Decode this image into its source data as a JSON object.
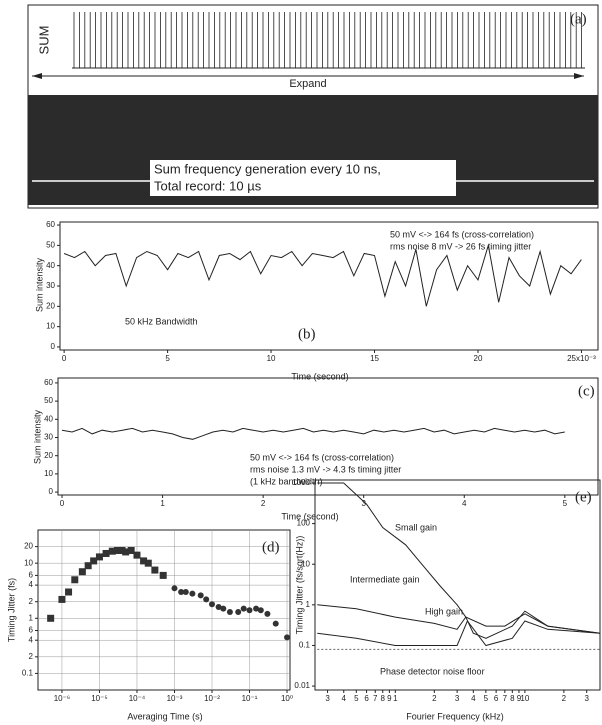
{
  "chart_data": [
    {
      "type": "trace",
      "label": "(a)",
      "channel": "SUM",
      "annotation": "Expand",
      "caption": [
        "Sum frequency generation every 10 ns,",
        "Total record: 10 µs"
      ]
    },
    {
      "type": "line",
      "label": "(b)",
      "ylabel": "Sum intensity",
      "xlabel": "Time (second)",
      "annotations": [
        "50 mV <-> 164 fs (cross-correlation)",
        "rms noise 8 mV -> 26 fs timing jitter",
        "50 kHz Bandwidth"
      ],
      "color": "#222",
      "x": [
        0,
        0.5,
        1,
        1.5,
        2,
        2.5,
        3,
        3.5,
        4,
        4.5,
        5,
        5.5,
        6,
        6.5,
        7,
        7.5,
        8,
        8.5,
        9,
        9.5,
        10,
        10.5,
        11,
        11.5,
        12,
        12.5,
        13,
        13.5,
        14,
        14.5,
        15,
        15.5,
        16,
        16.5,
        17,
        17.5,
        18,
        18.5,
        19,
        19.5,
        20,
        20.5,
        21,
        21.5,
        22,
        22.5,
        23,
        23.5,
        24,
        24.5,
        25
      ],
      "values": [
        46,
        44,
        47,
        40,
        45,
        46,
        30,
        44,
        47,
        45,
        38,
        46,
        44,
        47,
        33,
        45,
        46,
        43,
        47,
        36,
        45,
        44,
        47,
        40,
        46,
        45,
        44,
        47,
        35,
        46,
        45,
        25,
        42,
        30,
        48,
        20,
        38,
        45,
        28,
        40,
        33,
        50,
        22,
        44,
        35,
        30,
        47,
        26,
        40,
        36,
        43
      ],
      "xlim": [
        -0.2,
        25.8
      ],
      "xticks": [
        0,
        5,
        10,
        15,
        20,
        {
          "value": 25,
          "label": "25x10⁻³"
        }
      ],
      "ylim": [
        -1.5,
        61.5
      ],
      "yticks": [
        0,
        10,
        20,
        30,
        40,
        50,
        60
      ]
    },
    {
      "type": "line",
      "label": "(c)",
      "ylabel": "Sum intensity",
      "xlabel": "Time (second)",
      "annotations": [
        "50 mV <-> 164 fs (cross-correlation)",
        "rms noise 1.3 mV -> 4.3 fs timing jitter",
        "(1 kHz bandwidth)"
      ],
      "color": "#222",
      "x": [
        0,
        0.1,
        0.2,
        0.3,
        0.4,
        0.5,
        0.6,
        0.7,
        0.8,
        0.9,
        1,
        1.1,
        1.2,
        1.3,
        1.4,
        1.5,
        1.6,
        1.7,
        1.8,
        1.9,
        2,
        2.1,
        2.2,
        2.3,
        2.4,
        2.5,
        2.6,
        2.7,
        2.8,
        2.9,
        3,
        3.1,
        3.2,
        3.3,
        3.4,
        3.5,
        3.6,
        3.7,
        3.8,
        3.9,
        4,
        4.1,
        4.2,
        4.3,
        4.4,
        4.5,
        4.6,
        4.7,
        4.8,
        4.9,
        5
      ],
      "values": [
        34,
        33,
        35,
        32,
        34,
        33,
        34,
        35,
        33,
        34,
        33,
        32,
        30,
        29,
        31,
        33,
        34,
        33,
        35,
        34,
        33,
        34,
        33,
        34,
        35,
        33,
        34,
        33,
        34,
        33,
        32,
        34,
        33,
        34,
        33,
        34,
        35,
        33,
        34,
        32,
        33,
        34,
        33,
        35,
        34,
        33,
        34,
        33,
        34,
        32,
        33
      ],
      "xlim": [
        -0.04,
        5.33
      ],
      "xticks": [
        0,
        1,
        2,
        3,
        4,
        5
      ],
      "ylim": [
        -1.6,
        62.7
      ],
      "yticks": [
        0,
        10,
        20,
        30,
        40,
        50,
        60
      ]
    },
    {
      "type": "scatter",
      "label": "(d)",
      "ylabel": "Timing Jitter (fs)",
      "xlabel": "Averaging Time (s)",
      "xlog": true,
      "ylog": true,
      "grid": true,
      "series": [
        {
          "marker": "square",
          "color": "#333",
          "x": [
            5e-07,
            1e-06,
            1.5e-06,
            2.2e-06,
            3.5e-06,
            5e-06,
            7e-06,
            1e-05,
            1.5e-05,
            2.2e-05,
            3e-05,
            4e-05,
            5e-05,
            7e-05,
            0.0001,
            0.00015,
            0.0002,
            0.0003,
            0.0005
          ],
          "values": [
            1,
            2.2,
            3,
            5,
            7,
            9,
            11,
            13,
            15,
            16.5,
            17,
            17,
            16,
            17,
            14,
            11,
            10,
            7.5,
            6
          ]
        },
        {
          "marker": "circle",
          "color": "#333",
          "x": [
            0.001,
            0.0015,
            0.002,
            0.003,
            0.005,
            0.007,
            0.01,
            0.015,
            0.02,
            0.03,
            0.05,
            0.07,
            0.1,
            0.15,
            0.2,
            0.3,
            0.5,
            1
          ],
          "values": [
            3.5,
            3,
            3,
            2.8,
            2.6,
            2.2,
            1.8,
            1.6,
            1.5,
            1.3,
            1.3,
            1.5,
            1.4,
            1.5,
            1.4,
            1.2,
            0.8,
            0.45
          ]
        }
      ],
      "xlim": [
        2.3e-07,
        1.2
      ],
      "xticks": [
        {
          "value": 1e-06,
          "label": "10⁻⁶"
        },
        {
          "value": 1e-05,
          "label": "10⁻⁵"
        },
        {
          "value": 0.0001,
          "label": "10⁻⁴"
        },
        {
          "value": 0.001,
          "label": "10⁻³"
        },
        {
          "value": 0.01,
          "label": "10⁻²"
        },
        {
          "value": 0.1,
          "label": "10⁻¹"
        },
        {
          "value": 1,
          "label": "10⁰"
        }
      ],
      "ylim": [
        0.05,
        40
      ],
      "yticks": [
        0.1,
        {
          "value": 0.2,
          "label": "2"
        },
        {
          "value": 0.4,
          "label": "4"
        },
        {
          "value": 0.6,
          "label": "6"
        },
        1,
        2,
        4,
        6,
        10,
        20
      ]
    },
    {
      "type": "line",
      "label": "(e)",
      "ylabel": "Timing Jitter (fs/sqrt(Hz))",
      "xlabel": "Fourier Frequency (kHz)",
      "xlog": true,
      "ylog": true,
      "series": [
        {
          "name": "Small gain",
          "color": "#222",
          "x": [
            0.25,
            0.4,
            0.6,
            0.8,
            1.2,
            1.6,
            2.2,
            3,
            3.5,
            5,
            7,
            10,
            15,
            38
          ],
          "values": [
            1000,
            1000,
            300,
            80,
            30,
            10,
            3,
            1,
            0.5,
            0.3,
            0.3,
            0.6,
            0.3,
            0.2
          ]
        },
        {
          "name": "Intermediate gain",
          "color": "#222",
          "x": [
            0.25,
            0.5,
            1,
            2,
            3,
            3.5,
            4,
            5,
            8,
            10,
            15,
            38
          ],
          "values": [
            1,
            0.8,
            0.5,
            0.35,
            0.25,
            0.5,
            0.2,
            0.15,
            0.3,
            0.7,
            0.3,
            0.2
          ]
        },
        {
          "name": "High gain",
          "color": "#222",
          "x": [
            0.25,
            0.5,
            1,
            2,
            3,
            3.6,
            5,
            8,
            10,
            15,
            38
          ],
          "values": [
            0.2,
            0.15,
            0.1,
            0.1,
            0.1,
            0.4,
            0.1,
            0.15,
            0.4,
            0.25,
            0.2
          ]
        },
        {
          "name": "Phase detector noise floor",
          "color": "#666",
          "dash": true,
          "x": [
            0.25,
            38
          ],
          "values": [
            0.08,
            0.08
          ]
        }
      ],
      "xlim": [
        0.24,
        38
      ],
      "xticks": [
        {
          "value": 0.3,
          "label": "3"
        },
        {
          "value": 0.4,
          "label": "4"
        },
        {
          "value": 0.5,
          "label": "5"
        },
        {
          "value": 0.6,
          "label": "6"
        },
        {
          "value": 0.7,
          "label": "7"
        },
        {
          "value": 0.8,
          "label": "8"
        },
        {
          "value": 0.9,
          "label": "9"
        },
        1,
        2,
        3,
        4,
        5,
        6,
        7,
        8,
        9,
        10,
        {
          "value": 20,
          "label": "2"
        },
        {
          "value": 30,
          "label": "3"
        }
      ],
      "ylim": [
        0.008,
        1185
      ],
      "yticks": [
        0.01,
        0.1,
        1,
        10,
        100,
        1000
      ]
    }
  ]
}
